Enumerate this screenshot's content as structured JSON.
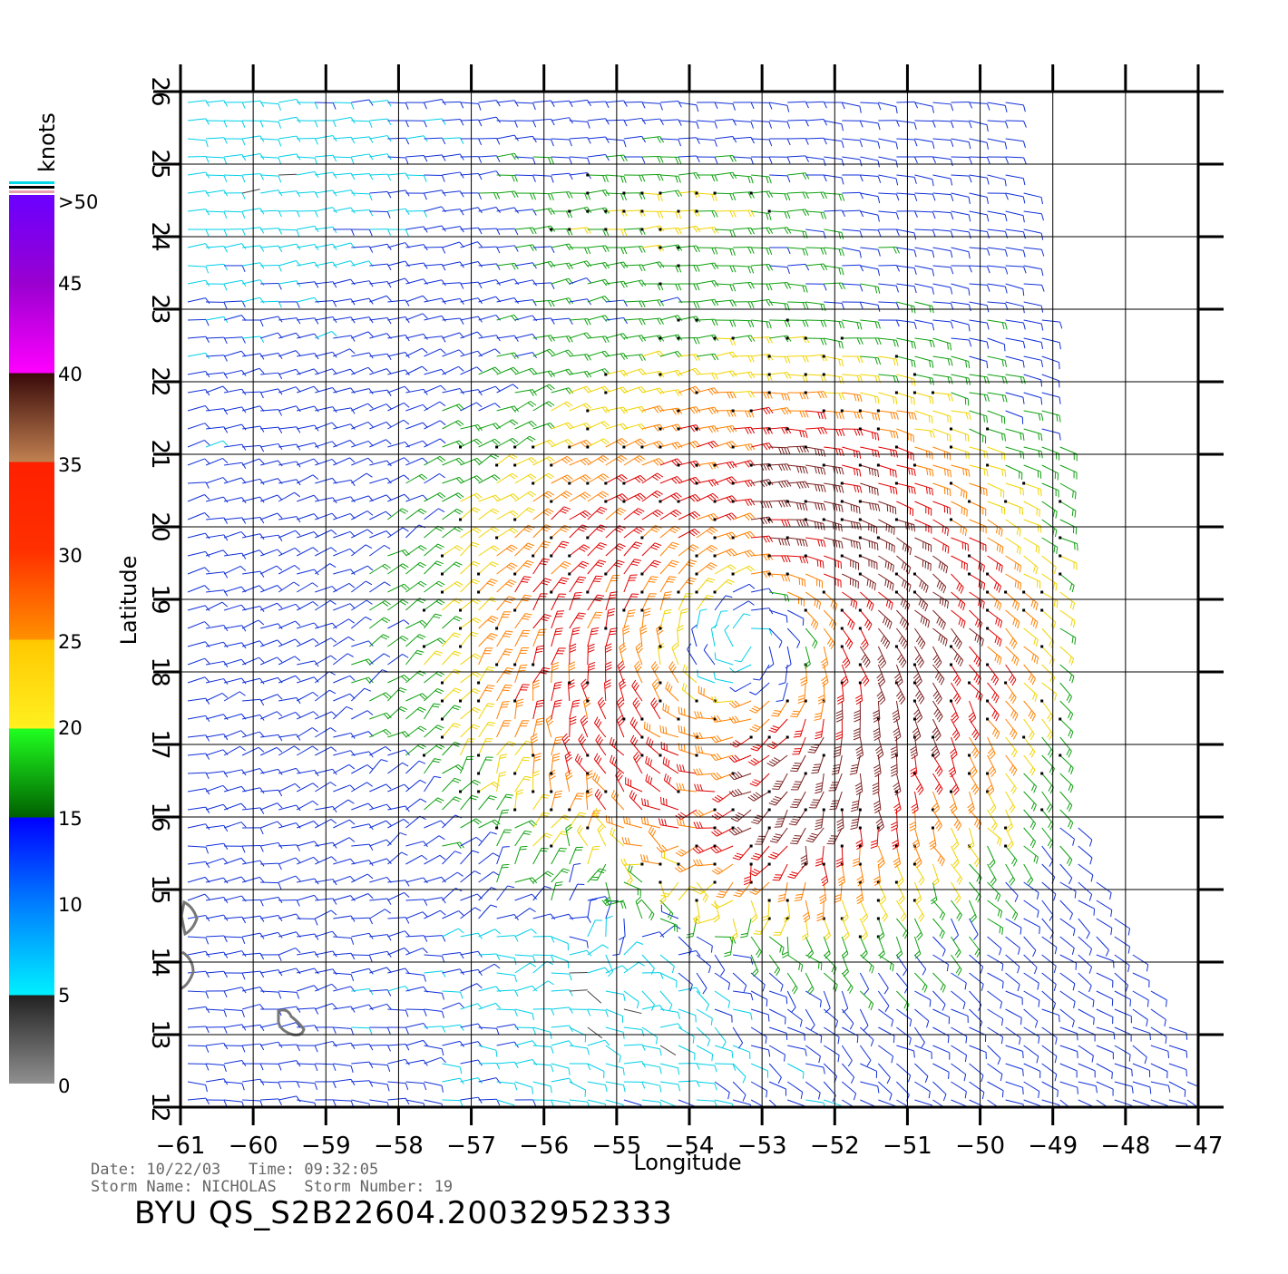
{
  "map": {
    "xlabel": "Longitude",
    "ylabel": "Latitude",
    "lon_ticks": [
      "−61",
      "−60",
      "−59",
      "−58",
      "−57",
      "−56",
      "−55",
      "−54",
      "−53",
      "−52",
      "−51",
      "−50",
      "−49",
      "−48",
      "−47"
    ],
    "lat_ticks": [
      "12",
      "13",
      "14",
      "15",
      "16",
      "17",
      "18",
      "19",
      "20",
      "21",
      "22",
      "23",
      "24",
      "25",
      "26"
    ],
    "lon_range": [
      -61,
      -47
    ],
    "lat_range": [
      12,
      26
    ],
    "storm_center": {
      "lon": -53.2,
      "lat": 18.4
    },
    "land_color": "#777777"
  },
  "legend": {
    "unit": "knots",
    "labels": [
      ">50",
      "45",
      "40",
      "35",
      "30",
      "25",
      "20",
      "15",
      "10",
      "5",
      "0"
    ],
    "bins": [
      {
        "range": "0-5",
        "color": "#444444"
      },
      {
        "range": "5-10",
        "color": "#00cfe8"
      },
      {
        "range": "10-15",
        "color": "#1030d8"
      },
      {
        "range": "15-20",
        "color": "#0fa010"
      },
      {
        "range": "20-25",
        "color": "#f0d400"
      },
      {
        "range": "25-30",
        "color": "#ff8000"
      },
      {
        "range": "30-35",
        "color": "#e00000"
      },
      {
        "range": ">35",
        "color": "#7a2020"
      }
    ]
  },
  "footer": {
    "line1": "Date: 10/22/03   Time: 09:32:05",
    "line2": "Storm Name: NICHOLAS   Storm Number: 19",
    "title": "BYU QS_S2B22604.20032952333"
  }
}
